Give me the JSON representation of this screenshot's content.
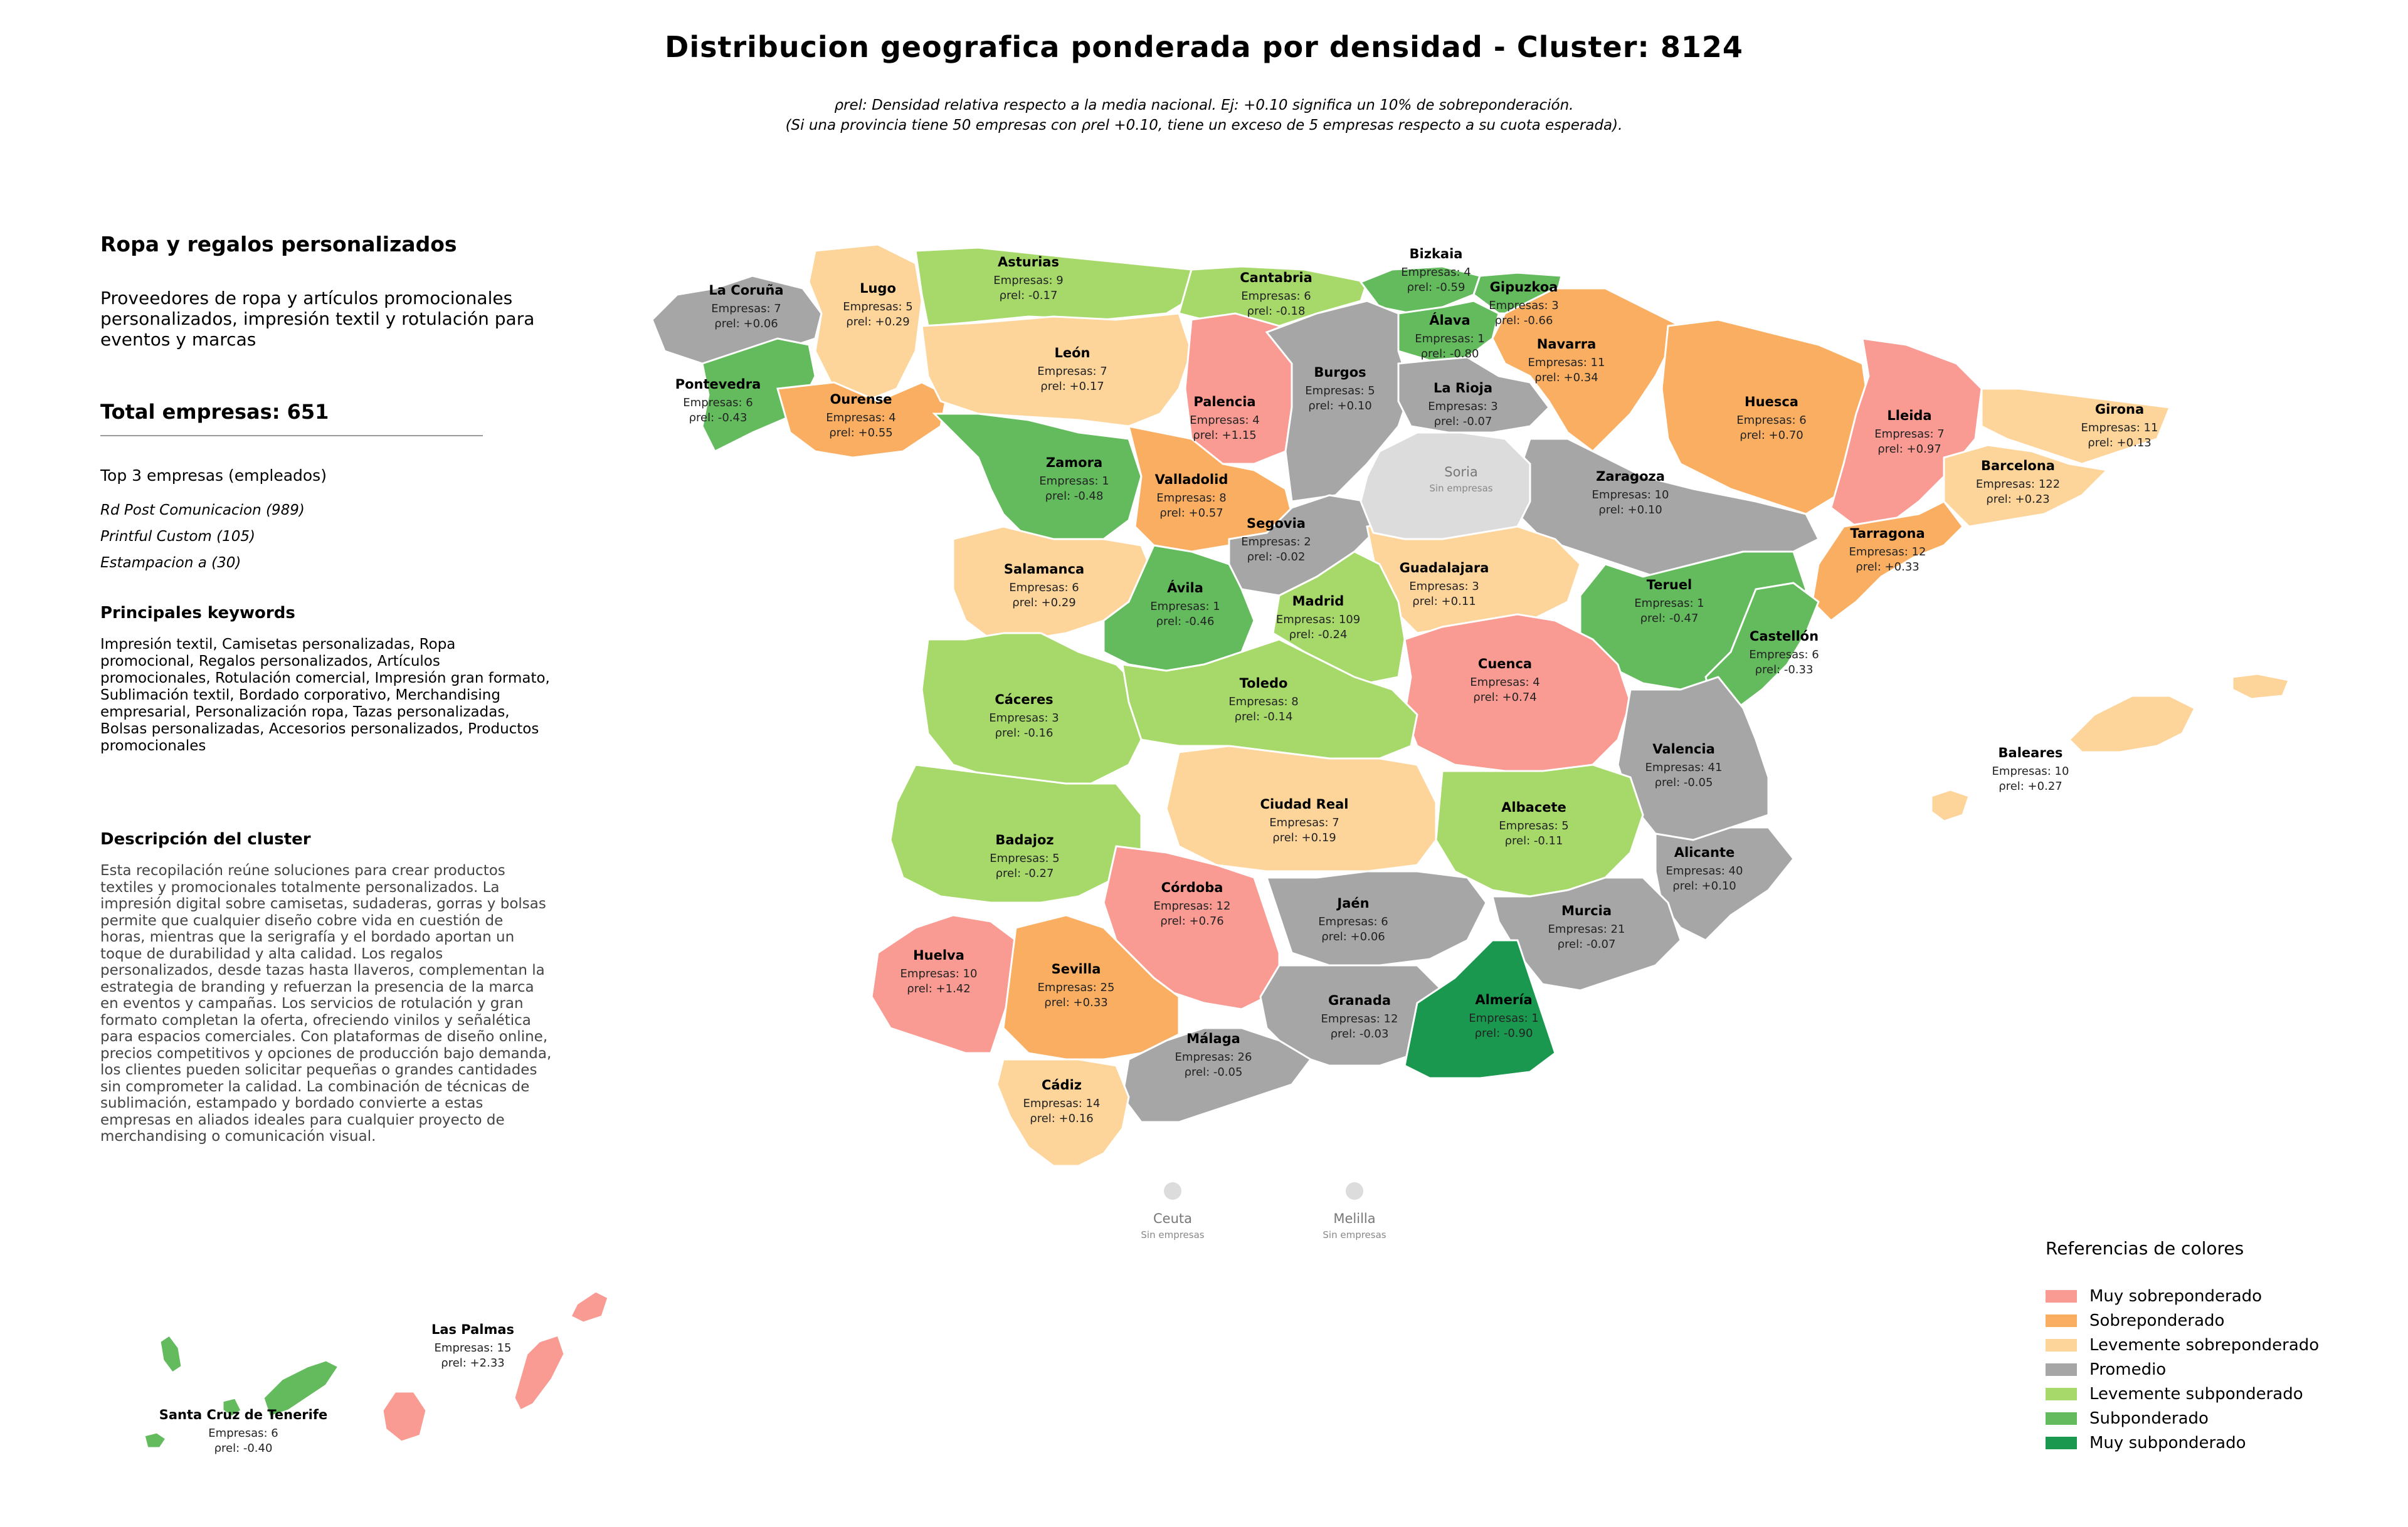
{
  "title": "Distribucion geografica ponderada por densidad - Cluster: 8124",
  "subtitle_line1": "ρrel: Densidad relativa respecto a la media nacional. Ej: +0.10 significa un 10% de sobreponderación.",
  "subtitle_line2": "(Si una provincia tiene 50 empresas con ρrel +0.10, tiene un exceso de 5 empresas respecto a su cuota esperada).",
  "panel": {
    "cluster_name": "Ropa y regalos personalizados",
    "cluster_summary": "Proveedores de ropa y artículos promocionales personalizados, impresión textil y rotulación para eventos y marcas",
    "total": "Total empresas: 651",
    "top_heading": "Top 3 empresas (empleados)",
    "top_companies": [
      "Rd Post Comunicacion (989)",
      "Printful Custom (105)",
      "Estampacion a (30)"
    ],
    "keywords_heading": "Principales keywords",
    "keywords": "Impresión textil, Camisetas personalizadas, Ropa promocional, Regalos personalizados, Artículos promocionales, Rotulación comercial, Impresión gran formato, Sublimación textil, Bordado corporativo, Merchandising empresarial, Personalización ropa, Tazas personalizadas, Bolsas personalizadas, Accesorios personalizados, Productos promocionales",
    "description_heading": "Descripción del cluster",
    "description": "Esta recopilación reúne soluciones para crear productos textiles y promocionales totalmente personalizados. La impresión digital sobre camisetas, sudaderas, gorras y bolsas permite que cualquier diseño cobre vida en cuestión de horas, mientras que la serigrafía y el bordado aportan un toque de durabilidad y alta calidad. Los regalos personalizados, desde tazas hasta llaveros, complementan la estrategia de branding y refuerzan la presencia de la marca en eventos y campañas. Los servicios de rotulación y gran formato completan la oferta, ofreciendo vinilos y señalética para espacios comerciales. Con plataformas de diseño online, precios competitivos y opciones de producción bajo demanda, los clientes pueden solicitar pequeñas o grandes cantidades sin comprometer la calidad. La combinación de técnicas de sublimación, estampado y bordado convierte a estas empresas en aliados ideales para cualquier proyecto de merchandising o comunicación visual."
  },
  "colors": {
    "muy_sobre": "#f99a93",
    "sobre": "#f9ae62",
    "lev_sobre": "#fdd49a",
    "promedio": "#a6a6a6",
    "lev_sub": "#a6d96a",
    "sub": "#63bb5e",
    "muy_sub": "#1a9850",
    "sin": "#dcdcdc"
  },
  "legend": {
    "title": "Referencias de colores",
    "items": [
      {
        "label": "Muy sobreponderado",
        "color": "#f99a93"
      },
      {
        "label": "Sobreponderado",
        "color": "#f9ae62"
      },
      {
        "label": "Levemente sobreponderado",
        "color": "#fdd49a"
      },
      {
        "label": "Promedio",
        "color": "#a6a6a6"
      },
      {
        "label": "Levemente subponderado",
        "color": "#a6d96a"
      },
      {
        "label": "Subponderado",
        "color": "#63bb5e"
      },
      {
        "label": "Muy subponderado",
        "color": "#1a9850"
      }
    ]
  },
  "provinces": [
    {
      "name": "La Coruña",
      "empresas": "Empresas: 7",
      "rho": "+0.06",
      "category": "promedio"
    },
    {
      "name": "Lugo",
      "empresas": "Empresas: 5",
      "rho": "+0.29",
      "category": "lev_sobre"
    },
    {
      "name": "Asturias",
      "empresas": "Empresas: 9",
      "rho": "-0.17",
      "category": "lev_sub"
    },
    {
      "name": "Cantabria",
      "empresas": "Empresas: 6",
      "rho": "-0.18",
      "category": "lev_sub"
    },
    {
      "name": "Bizkaia",
      "empresas": "Empresas: 4",
      "rho": "-0.59",
      "category": "sub"
    },
    {
      "name": "Gipuzkoa",
      "empresas": "Empresas: 3",
      "rho": "-0.66",
      "category": "sub"
    },
    {
      "name": "Álava",
      "empresas": "Empresas: 1",
      "rho": "-0.80",
      "category": "sub"
    },
    {
      "name": "Navarra",
      "empresas": "Empresas: 11",
      "rho": "+0.34",
      "category": "sobre"
    },
    {
      "name": "Pontevedra",
      "empresas": "Empresas: 6",
      "rho": "-0.43",
      "category": "sub"
    },
    {
      "name": "Ourense",
      "empresas": "Empresas: 4",
      "rho": "+0.55",
      "category": "sobre"
    },
    {
      "name": "León",
      "empresas": "Empresas: 7",
      "rho": "+0.17",
      "category": "lev_sobre"
    },
    {
      "name": "Palencia",
      "empresas": "Empresas: 4",
      "rho": "+1.15",
      "category": "muy_sobre"
    },
    {
      "name": "Burgos",
      "empresas": "Empresas: 5",
      "rho": "+0.10",
      "category": "promedio"
    },
    {
      "name": "La Rioja",
      "empresas": "Empresas: 3",
      "rho": "-0.07",
      "category": "promedio"
    },
    {
      "name": "Huesca",
      "empresas": "Empresas: 6",
      "rho": "+0.70",
      "category": "sobre"
    },
    {
      "name": "Lleida",
      "empresas": "Empresas: 7",
      "rho": "+0.97",
      "category": "muy_sobre"
    },
    {
      "name": "Girona",
      "empresas": "Empresas: 11",
      "rho": "+0.13",
      "category": "lev_sobre"
    },
    {
      "name": "Barcelona",
      "empresas": "Empresas: 122",
      "rho": "+0.23",
      "category": "lev_sobre"
    },
    {
      "name": "Zamora",
      "empresas": "Empresas: 1",
      "rho": "-0.48",
      "category": "sub"
    },
    {
      "name": "Valladolid",
      "empresas": "Empresas: 8",
      "rho": "+0.57",
      "category": "sobre"
    },
    {
      "name": "Zaragoza",
      "empresas": "Empresas: 10",
      "rho": "+0.10",
      "category": "promedio"
    },
    {
      "name": "Segovia",
      "empresas": "Empresas: 2",
      "rho": "-0.02",
      "category": "promedio"
    },
    {
      "name": "Tarragona",
      "empresas": "Empresas: 12",
      "rho": "+0.33",
      "category": "sobre"
    },
    {
      "name": "Salamanca",
      "empresas": "Empresas: 6",
      "rho": "+0.29",
      "category": "lev_sobre"
    },
    {
      "name": "Guadalajara",
      "empresas": "Empresas: 3",
      "rho": "+0.11",
      "category": "lev_sobre"
    },
    {
      "name": "Ávila",
      "empresas": "Empresas: 1",
      "rho": "-0.46",
      "category": "sub"
    },
    {
      "name": "Madrid",
      "empresas": "Empresas: 109",
      "rho": "-0.24",
      "category": "lev_sub"
    },
    {
      "name": "Teruel",
      "empresas": "Empresas: 1",
      "rho": "-0.47",
      "category": "sub"
    },
    {
      "name": "Castellón",
      "empresas": "Empresas: 6",
      "rho": "-0.33",
      "category": "sub"
    },
    {
      "name": "Cuenca",
      "empresas": "Empresas: 4",
      "rho": "+0.74",
      "category": "muy_sobre"
    },
    {
      "name": "Cáceres",
      "empresas": "Empresas: 3",
      "rho": "-0.16",
      "category": "lev_sub"
    },
    {
      "name": "Toledo",
      "empresas": "Empresas: 8",
      "rho": "-0.14",
      "category": "lev_sub"
    },
    {
      "name": "Valencia",
      "empresas": "Empresas: 41",
      "rho": "-0.05",
      "category": "promedio"
    },
    {
      "name": "Baleares",
      "empresas": "Empresas: 10",
      "rho": "+0.27",
      "category": "lev_sobre"
    },
    {
      "name": "Ciudad Real",
      "empresas": "Empresas: 7",
      "rho": "+0.19",
      "category": "lev_sobre"
    },
    {
      "name": "Albacete",
      "empresas": "Empresas: 5",
      "rho": "-0.11",
      "category": "lev_sub"
    },
    {
      "name": "Badajoz",
      "empresas": "Empresas: 5",
      "rho": "-0.27",
      "category": "lev_sub"
    },
    {
      "name": "Alicante",
      "empresas": "Empresas: 40",
      "rho": "+0.10",
      "category": "promedio"
    },
    {
      "name": "Córdoba",
      "empresas": "Empresas: 12",
      "rho": "+0.76",
      "category": "muy_sobre"
    },
    {
      "name": "Jaén",
      "empresas": "Empresas: 6",
      "rho": "+0.06",
      "category": "promedio"
    },
    {
      "name": "Murcia",
      "empresas": "Empresas: 21",
      "rho": "-0.07",
      "category": "promedio"
    },
    {
      "name": "Huelva",
      "empresas": "Empresas: 10",
      "rho": "+1.42",
      "category": "muy_sobre"
    },
    {
      "name": "Sevilla",
      "empresas": "Empresas: 25",
      "rho": "+0.33",
      "category": "sobre"
    },
    {
      "name": "Granada",
      "empresas": "Empresas: 12",
      "rho": "-0.03",
      "category": "promedio"
    },
    {
      "name": "Almería",
      "empresas": "Empresas: 1",
      "rho": "-0.90",
      "category": "muy_sub"
    },
    {
      "name": "Málaga",
      "empresas": "Empresas: 26",
      "rho": "-0.05",
      "category": "promedio"
    },
    {
      "name": "Cádiz",
      "empresas": "Empresas: 14",
      "rho": "+0.16",
      "category": "lev_sobre"
    },
    {
      "name": "Las Palmas",
      "empresas": "Empresas: 15",
      "rho": "+2.33",
      "category": "muy_sobre"
    },
    {
      "name": "Santa Cruz de Tenerife",
      "empresas": "Empresas: 6",
      "rho": "-0.40",
      "category": "sub"
    }
  ],
  "no_data_regions": [
    {
      "name": "Soria",
      "note": "Sin empresas"
    },
    {
      "name": "Ceuta",
      "note": "Sin empresas"
    },
    {
      "name": "Melilla",
      "note": "Sin empresas"
    }
  ],
  "rho_prefix": "ρrel: "
}
